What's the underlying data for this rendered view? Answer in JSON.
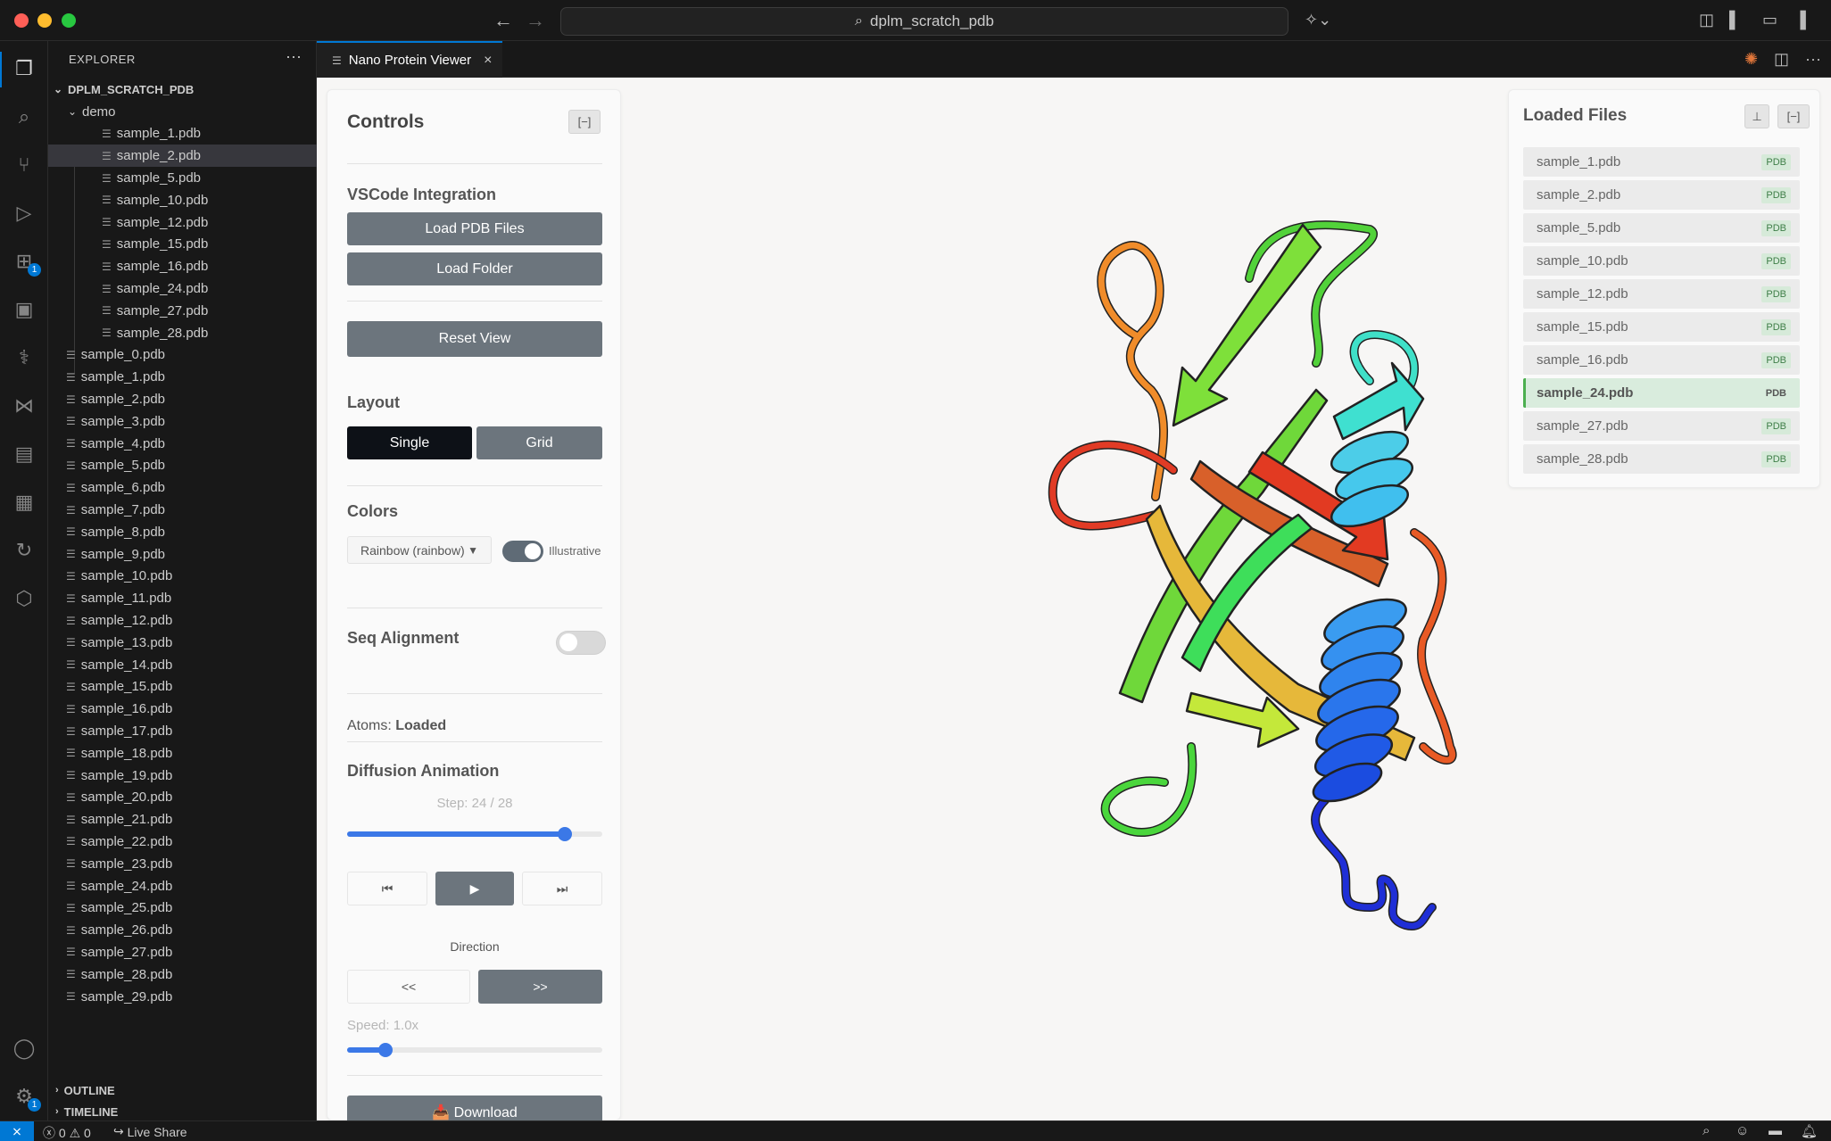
{
  "titlebar": {
    "search_text": "dplm_scratch_pdb",
    "back_icon": "arrow-left-icon",
    "forward_icon": "arrow-right-icon"
  },
  "explorer": {
    "title": "EXPLORER",
    "more": "···",
    "root": "DPLM_SCRATCH_PDB",
    "folder": "demo",
    "demo_files": [
      "sample_1.pdb",
      "sample_2.pdb",
      "sample_5.pdb",
      "sample_10.pdb",
      "sample_12.pdb",
      "sample_15.pdb",
      "sample_16.pdb",
      "sample_24.pdb",
      "sample_27.pdb",
      "sample_28.pdb"
    ],
    "selected_demo_file": "sample_2.pdb",
    "root_files": [
      "sample_0.pdb",
      "sample_1.pdb",
      "sample_2.pdb",
      "sample_3.pdb",
      "sample_4.pdb",
      "sample_5.pdb",
      "sample_6.pdb",
      "sample_7.pdb",
      "sample_8.pdb",
      "sample_9.pdb",
      "sample_10.pdb",
      "sample_11.pdb",
      "sample_12.pdb",
      "sample_13.pdb",
      "sample_14.pdb",
      "sample_15.pdb",
      "sample_16.pdb",
      "sample_17.pdb",
      "sample_18.pdb",
      "sample_19.pdb",
      "sample_20.pdb",
      "sample_21.pdb",
      "sample_22.pdb",
      "sample_23.pdb",
      "sample_24.pdb",
      "sample_25.pdb",
      "sample_26.pdb",
      "sample_27.pdb",
      "sample_28.pdb",
      "sample_29.pdb"
    ],
    "outline": "OUTLINE",
    "timeline": "TIMELINE"
  },
  "activity": {
    "extensions_badge": "1",
    "settings_badge": "1"
  },
  "tab": {
    "label": "Nano Protein Viewer",
    "close": "×"
  },
  "controls": {
    "title": "Controls",
    "collapse": "[−]",
    "vscode_heading": "VSCode Integration",
    "load_pdb": "Load PDB Files",
    "load_folder": "Load Folder",
    "reset_view": "Reset View",
    "layout_heading": "Layout",
    "layout_single": "Single",
    "layout_grid": "Grid",
    "colors_heading": "Colors",
    "color_scheme": "Rainbow (rainbow)",
    "illustrative_label": "Illustrative",
    "illustrative_on": true,
    "seq_alignment": "Seq Alignment",
    "seq_alignment_on": false,
    "atoms_label": "Atoms:",
    "atoms_value": "Loaded",
    "diffusion_heading": "Diffusion Animation",
    "step_text": "Step: 24 / 28",
    "step_current": 24,
    "step_total": 28,
    "first_icon": "⏮",
    "play_icon": "▶",
    "last_icon": "⏭",
    "direction_label": "Direction",
    "dir_back": "<<",
    "dir_forward": ">>",
    "speed_text": "Speed: 1.0x",
    "speed_value": 1.0,
    "download": "📥 Download"
  },
  "loaded_files": {
    "title": "Loaded Files",
    "download_icon": "⊥",
    "collapse": "[−]",
    "tag": "PDB",
    "files": [
      "sample_1.pdb",
      "sample_2.pdb",
      "sample_5.pdb",
      "sample_10.pdb",
      "sample_12.pdb",
      "sample_15.pdb",
      "sample_16.pdb",
      "sample_24.pdb",
      "sample_27.pdb",
      "sample_28.pdb"
    ],
    "active": "sample_24.pdb"
  },
  "statusbar": {
    "errors": "0",
    "warnings": "0",
    "live_share": "Live Share"
  },
  "colors": {
    "accent": "#0078d4",
    "button_grey": "#6c757d",
    "slider_blue": "#3b78e7",
    "active_file_green": "#4caf50"
  }
}
